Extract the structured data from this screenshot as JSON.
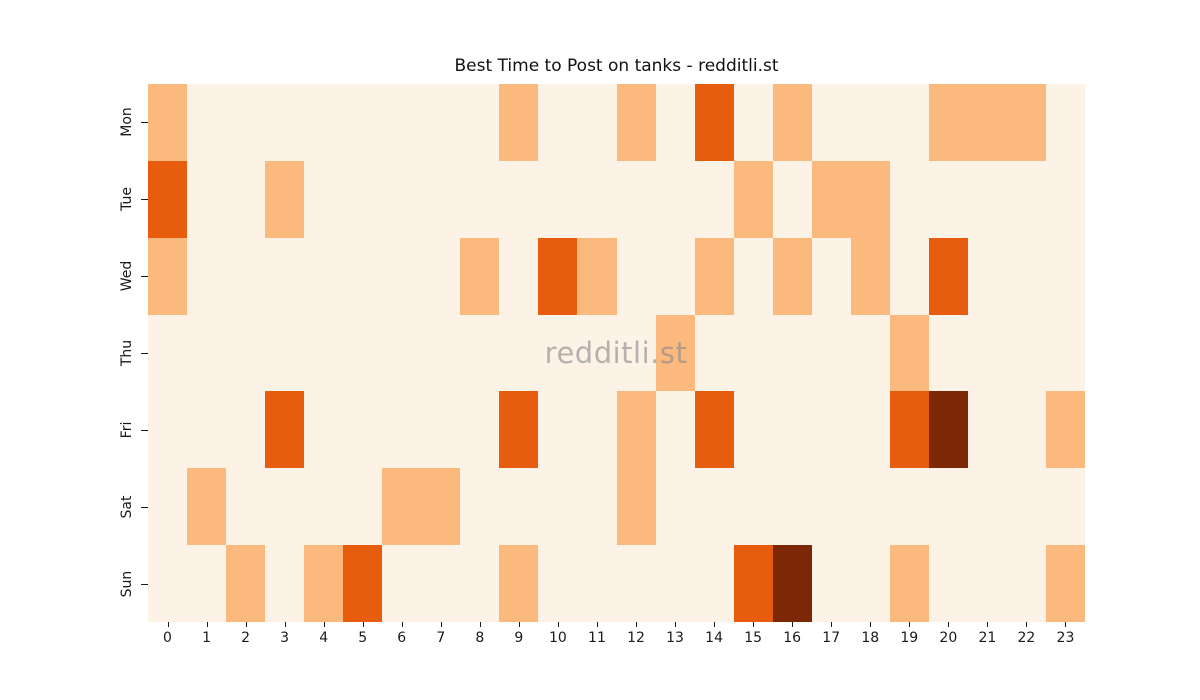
{
  "chart_data": {
    "type": "heatmap",
    "title": "Best Time to Post on tanks - redditli.st",
    "watermark": "redditli.st",
    "xlabel": "",
    "ylabel": "",
    "x_tick_labels": [
      "0",
      "1",
      "2",
      "3",
      "4",
      "5",
      "6",
      "7",
      "8",
      "9",
      "10",
      "11",
      "12",
      "13",
      "14",
      "15",
      "16",
      "17",
      "18",
      "19",
      "20",
      "21",
      "22",
      "23"
    ],
    "y_tick_labels": [
      "Mon",
      "Tue",
      "Wed",
      "Thu",
      "Fri",
      "Sat",
      "Sun"
    ],
    "value_range": [
      0,
      3
    ],
    "grid": "off",
    "legend_position": "none",
    "colormap": {
      "name": "Oranges",
      "levels": [
        "#fdf2e6",
        "#fcb97d",
        "#e75c0d",
        "#7c2705"
      ]
    },
    "values": [
      [
        1,
        0,
        0,
        0,
        0,
        0,
        0,
        0,
        0,
        1,
        0,
        0,
        1,
        0,
        2,
        0,
        1,
        0,
        0,
        0,
        1,
        1,
        1,
        0
      ],
      [
        2,
        0,
        0,
        1,
        0,
        0,
        0,
        0,
        0,
        0,
        0,
        0,
        0,
        0,
        0,
        1,
        0,
        1,
        1,
        0,
        0,
        0,
        0,
        0
      ],
      [
        1,
        0,
        0,
        0,
        0,
        0,
        0,
        0,
        1,
        0,
        2,
        1,
        0,
        0,
        1,
        0,
        1,
        0,
        1,
        0,
        2,
        0,
        0,
        0
      ],
      [
        0,
        0,
        0,
        0,
        0,
        0,
        0,
        0,
        0,
        0,
        0,
        0,
        0,
        1,
        0,
        0,
        0,
        0,
        0,
        1,
        0,
        0,
        0,
        0
      ],
      [
        0,
        0,
        0,
        2,
        0,
        0,
        0,
        0,
        0,
        2,
        0,
        0,
        1,
        0,
        2,
        0,
        0,
        0,
        0,
        2,
        3,
        0,
        0,
        1
      ],
      [
        0,
        1,
        0,
        0,
        0,
        0,
        1,
        1,
        0,
        0,
        0,
        0,
        1,
        0,
        0,
        0,
        0,
        0,
        0,
        0,
        0,
        0,
        0,
        0
      ],
      [
        0,
        0,
        1,
        0,
        1,
        2,
        0,
        0,
        0,
        1,
        0,
        0,
        0,
        0,
        0,
        2,
        3,
        0,
        0,
        1,
        0,
        0,
        0,
        1
      ]
    ],
    "text_color": "#1a1a1a",
    "watermark_color": "#8a8a8a",
    "figure_background": "#ffffff"
  }
}
